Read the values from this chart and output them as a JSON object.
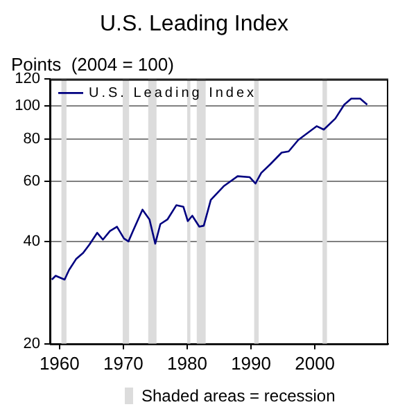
{
  "chart_data": {
    "type": "line",
    "title": "U.S. Leading Index",
    "ylabel": "Points  (2004 = 100)",
    "log": "y",
    "grid": "y",
    "legend": "top left",
    "marker": "none",
    "line_style": "solid",
    "xlim": [
      1958.5,
      2011.5
    ],
    "xticks": [
      1960,
      1970,
      1980,
      1990,
      2000
    ],
    "ylim": [
      20,
      120
    ],
    "yticks": [
      20,
      40,
      60,
      80,
      100,
      120
    ],
    "series": [
      {
        "name": "U.S. Leading Index",
        "color": "#000080",
        "x": [
          1958.8,
          1959.4,
          1960.8,
          1961.5,
          1962.6,
          1963.7,
          1964.7,
          1965.9,
          1966.8,
          1967.9,
          1969.0,
          1970.1,
          1970.8,
          1971.5,
          1973.0,
          1974.1,
          1975.0,
          1975.8,
          1976.9,
          1978.3,
          1979.4,
          1980.1,
          1980.8,
          1981.9,
          1982.6,
          1983.7,
          1985.8,
          1987.9,
          1989.8,
          1990.7,
          1991.6,
          1993.0,
          1994.8,
          1995.9,
          1997.4,
          2000.3,
          2001.4,
          2003.2,
          2004.6,
          2005.7,
          2007.1,
          2008.2
        ],
        "values": [
          30.9,
          31.7,
          30.9,
          33.0,
          35.5,
          37.0,
          39.2,
          42.4,
          40.5,
          42.9,
          44.2,
          40.8,
          40.0,
          42.9,
          49.6,
          46.4,
          39.4,
          45.0,
          46.4,
          51.1,
          50.6,
          45.9,
          47.6,
          44.2,
          44.5,
          53.0,
          58.3,
          62.2,
          61.8,
          59.2,
          63.6,
          67.4,
          73.0,
          73.6,
          79.5,
          87.3,
          85.3,
          91.9,
          101.0,
          105.2,
          105.2,
          101.0
        ]
      }
    ],
    "bands": [
      {
        "axis": "x",
        "from": 1960.3,
        "to": 1961.1,
        "color": "#dcdcdc"
      },
      {
        "axis": "x",
        "from": 1969.9,
        "to": 1970.9,
        "color": "#dcdcdc"
      },
      {
        "axis": "x",
        "from": 1973.9,
        "to": 1975.2,
        "color": "#dcdcdc"
      },
      {
        "axis": "x",
        "from": 1980.0,
        "to": 1980.5,
        "color": "#dcdcdc"
      },
      {
        "axis": "x",
        "from": 1981.5,
        "to": 1982.9,
        "color": "#dcdcdc"
      },
      {
        "axis": "x",
        "from": 1990.5,
        "to": 1991.2,
        "color": "#dcdcdc"
      },
      {
        "axis": "x",
        "from": 2001.2,
        "to": 2001.9,
        "color": "#dcdcdc"
      }
    ],
    "annotations": [
      "Shaded areas = recession"
    ]
  }
}
